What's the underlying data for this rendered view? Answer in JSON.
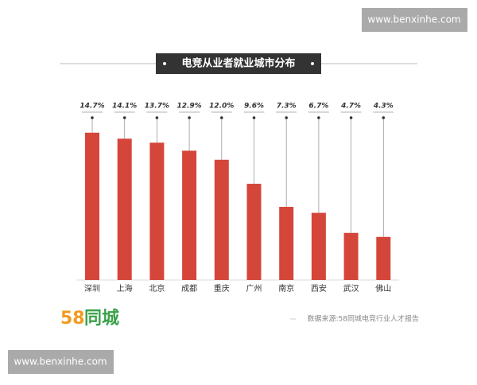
{
  "chart_data": {
    "type": "bar",
    "title": "电竞从业者就业城市分布",
    "categories": [
      "深圳",
      "上海",
      "北京",
      "成都",
      "重庆",
      "广州",
      "南京",
      "西安",
      "武汉",
      "佛山"
    ],
    "values": [
      14.7,
      14.1,
      13.7,
      12.9,
      12.0,
      9.6,
      7.3,
      6.7,
      4.7,
      4.3
    ],
    "value_labels": [
      "14.7%",
      "14.1%",
      "13.7%",
      "12.9%",
      "12.0%",
      "9.6%",
      "7.3%",
      "6.7%",
      "4.7%",
      "4.3%"
    ],
    "color": "#d5463a",
    "source": "数据来源:58同城电竞行业人才报告"
  },
  "logo": {
    "digits": "58",
    "name": "同城"
  },
  "watermarks": [
    "www.benxinhe.com",
    "www.benxinhe.com"
  ]
}
